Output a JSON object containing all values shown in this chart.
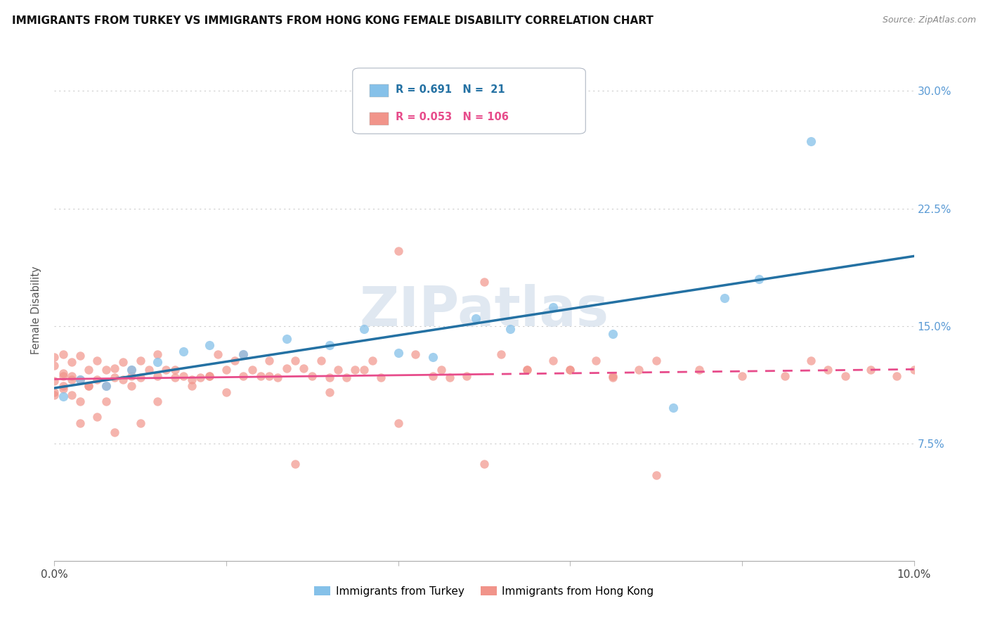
{
  "title": "IMMIGRANTS FROM TURKEY VS IMMIGRANTS FROM HONG KONG FEMALE DISABILITY CORRELATION CHART",
  "source": "Source: ZipAtlas.com",
  "ylabel": "Female Disability",
  "r_turkey": 0.691,
  "n_turkey": 21,
  "r_hk": 0.053,
  "n_hk": 106,
  "color_turkey": "#85c1e9",
  "color_hk": "#f1948a",
  "trendline_turkey": "#2471a3",
  "trendline_hk": "#e74c8b",
  "watermark_color": "#ccd9e8",
  "xlim": [
    0.0,
    0.1
  ],
  "ylim": [
    0.0,
    0.32
  ],
  "yticks": [
    0.075,
    0.15,
    0.225,
    0.3
  ],
  "xticks": [
    0.0,
    0.1
  ],
  "turkey_x": [
    0.001,
    0.003,
    0.006,
    0.009,
    0.012,
    0.015,
    0.018,
    0.022,
    0.027,
    0.032,
    0.036,
    0.04,
    0.044,
    0.049,
    0.053,
    0.058,
    0.065,
    0.072,
    0.078,
    0.082,
    0.088
  ],
  "turkey_y": [
    0.105,
    0.116,
    0.112,
    0.122,
    0.127,
    0.134,
    0.138,
    0.132,
    0.142,
    0.138,
    0.148,
    0.133,
    0.13,
    0.155,
    0.148,
    0.162,
    0.145,
    0.098,
    0.168,
    0.18,
    0.268
  ],
  "hk_x": [
    0.0,
    0.0,
    0.0,
    0.0,
    0.0,
    0.001,
    0.001,
    0.001,
    0.001,
    0.002,
    0.002,
    0.002,
    0.003,
    0.003,
    0.003,
    0.004,
    0.004,
    0.005,
    0.005,
    0.006,
    0.006,
    0.007,
    0.007,
    0.008,
    0.008,
    0.009,
    0.009,
    0.01,
    0.01,
    0.011,
    0.012,
    0.012,
    0.013,
    0.014,
    0.015,
    0.016,
    0.017,
    0.018,
    0.019,
    0.02,
    0.021,
    0.022,
    0.023,
    0.024,
    0.025,
    0.026,
    0.027,
    0.028,
    0.029,
    0.03,
    0.031,
    0.032,
    0.033,
    0.034,
    0.035,
    0.037,
    0.038,
    0.04,
    0.042,
    0.044,
    0.046,
    0.048,
    0.05,
    0.052,
    0.055,
    0.058,
    0.06,
    0.063,
    0.065,
    0.068,
    0.07,
    0.075,
    0.08,
    0.085,
    0.088,
    0.09,
    0.092,
    0.095,
    0.098,
    0.1,
    0.001,
    0.002,
    0.003,
    0.004,
    0.005,
    0.006,
    0.007,
    0.009,
    0.01,
    0.012,
    0.014,
    0.016,
    0.018,
    0.02,
    0.022,
    0.025,
    0.028,
    0.032,
    0.036,
    0.04,
    0.045,
    0.05,
    0.055,
    0.06,
    0.065,
    0.07
  ],
  "hk_y": [
    0.115,
    0.106,
    0.125,
    0.13,
    0.108,
    0.12,
    0.11,
    0.132,
    0.118,
    0.116,
    0.106,
    0.127,
    0.116,
    0.102,
    0.131,
    0.122,
    0.112,
    0.116,
    0.128,
    0.122,
    0.112,
    0.117,
    0.123,
    0.127,
    0.116,
    0.122,
    0.112,
    0.117,
    0.128,
    0.122,
    0.118,
    0.132,
    0.122,
    0.117,
    0.118,
    0.116,
    0.117,
    0.118,
    0.132,
    0.122,
    0.128,
    0.132,
    0.122,
    0.118,
    0.128,
    0.117,
    0.123,
    0.128,
    0.123,
    0.118,
    0.128,
    0.117,
    0.122,
    0.117,
    0.122,
    0.128,
    0.117,
    0.198,
    0.132,
    0.118,
    0.117,
    0.118,
    0.178,
    0.132,
    0.122,
    0.128,
    0.122,
    0.128,
    0.117,
    0.122,
    0.128,
    0.122,
    0.118,
    0.118,
    0.128,
    0.122,
    0.118,
    0.122,
    0.118,
    0.122,
    0.112,
    0.118,
    0.088,
    0.112,
    0.092,
    0.102,
    0.082,
    0.118,
    0.088,
    0.102,
    0.122,
    0.112,
    0.118,
    0.108,
    0.118,
    0.118,
    0.062,
    0.108,
    0.122,
    0.088,
    0.122,
    0.062,
    0.122,
    0.122,
    0.118,
    0.055
  ]
}
